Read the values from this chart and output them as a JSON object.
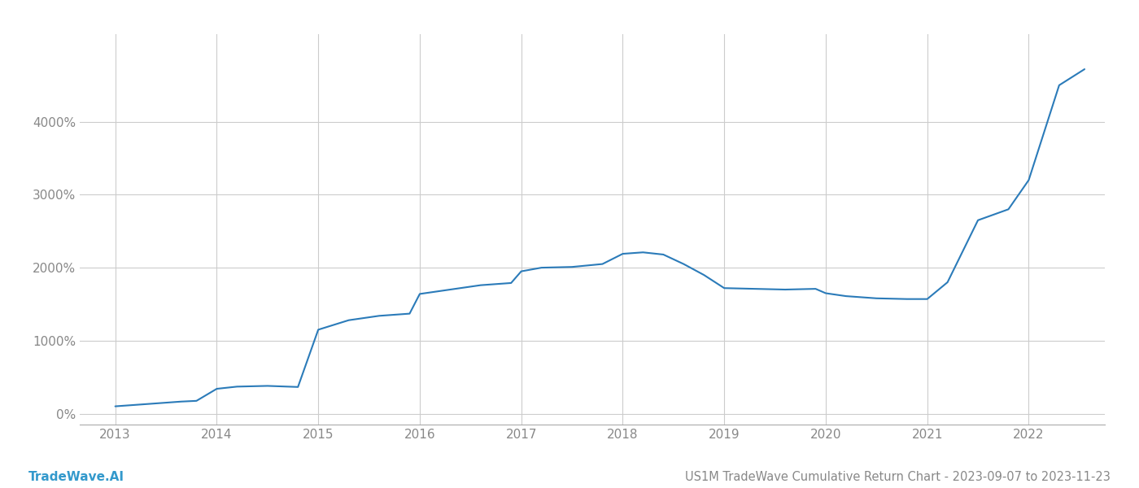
{
  "title": "US1M TradeWave Cumulative Return Chart - 2023-09-07 to 2023-11-23",
  "watermark": "TradeWave.AI",
  "line_color": "#2b7bb9",
  "background_color": "#ffffff",
  "grid_color": "#cccccc",
  "x_years": [
    2013,
    2014,
    2015,
    2016,
    2017,
    2018,
    2019,
    2020,
    2021,
    2022
  ],
  "data_x": [
    2013.0,
    2013.15,
    2013.3,
    2013.5,
    2013.65,
    2013.8,
    2014.0,
    2014.2,
    2014.5,
    2014.8,
    2015.0,
    2015.3,
    2015.6,
    2015.9,
    2016.0,
    2016.3,
    2016.6,
    2016.9,
    2017.0,
    2017.2,
    2017.5,
    2017.8,
    2018.0,
    2018.2,
    2018.4,
    2018.6,
    2018.8,
    2019.0,
    2019.3,
    2019.6,
    2019.9,
    2020.0,
    2020.2,
    2020.5,
    2020.8,
    2021.0,
    2021.2,
    2021.5,
    2021.8,
    2022.0,
    2022.3,
    2022.55
  ],
  "data_y": [
    100,
    115,
    130,
    150,
    165,
    175,
    340,
    370,
    380,
    365,
    1150,
    1280,
    1340,
    1370,
    1640,
    1700,
    1760,
    1790,
    1950,
    2000,
    2010,
    2050,
    2190,
    2210,
    2180,
    2050,
    1900,
    1720,
    1710,
    1700,
    1710,
    1650,
    1610,
    1580,
    1570,
    1570,
    1800,
    2650,
    2800,
    3200,
    4500,
    4720
  ],
  "yticks": [
    0,
    1000,
    2000,
    3000,
    4000
  ],
  "ylim": [
    -150,
    5200
  ],
  "xlim": [
    2012.65,
    2022.75
  ],
  "title_fontsize": 10.5,
  "watermark_fontsize": 11,
  "axis_label_fontsize": 11,
  "line_width": 1.5
}
